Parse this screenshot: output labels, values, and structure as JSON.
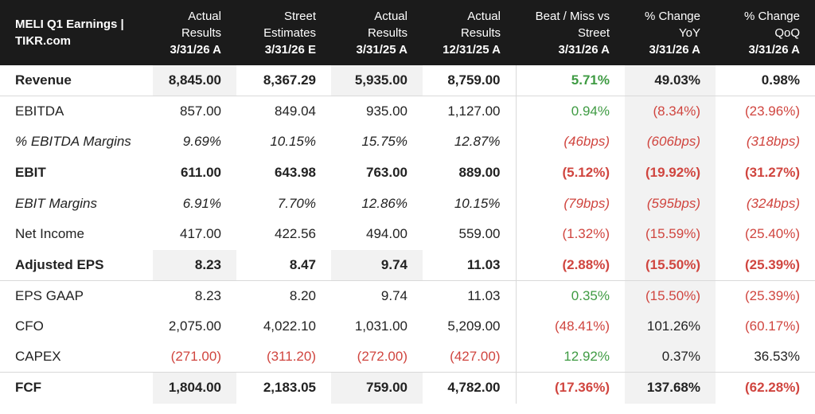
{
  "header": {
    "title_line1": "MELI Q1 Earnings |",
    "title_line2": "TIKR.com",
    "columns": [
      {
        "line1": "Actual",
        "line2": "Results",
        "date": "3/31/26 A"
      },
      {
        "line1": "Street",
        "line2": "Estimates",
        "date": "3/31/26 E"
      },
      {
        "line1": "Actual",
        "line2": "Results",
        "date": "3/31/25 A"
      },
      {
        "line1": "Actual",
        "line2": "Results",
        "date": "12/31/25 A"
      },
      {
        "line1": "Beat / Miss vs",
        "line2": "Street",
        "date": "3/31/26 A"
      },
      {
        "line1": "% Change",
        "line2": "YoY",
        "date": "3/31/26 A"
      },
      {
        "line1": "% Change",
        "line2": "QoQ",
        "date": "3/31/26 A"
      }
    ]
  },
  "rows": [
    {
      "label": "Revenue",
      "style": "bold",
      "cells": [
        {
          "v": "8,845.00",
          "c": "neu"
        },
        {
          "v": "8,367.29",
          "c": "neu"
        },
        {
          "v": "5,935.00",
          "c": "neu"
        },
        {
          "v": "8,759.00",
          "c": "neu"
        },
        {
          "v": "5.71%",
          "c": "pos"
        },
        {
          "v": "49.03%",
          "c": "neu"
        },
        {
          "v": "0.98%",
          "c": "neu"
        }
      ]
    },
    {
      "label": "EBITDA",
      "style": "normal",
      "cells": [
        {
          "v": "857.00",
          "c": "neu"
        },
        {
          "v": "849.04",
          "c": "neu"
        },
        {
          "v": "935.00",
          "c": "neu"
        },
        {
          "v": "1,127.00",
          "c": "neu"
        },
        {
          "v": "0.94%",
          "c": "pos"
        },
        {
          "v": "(8.34%)",
          "c": "neg"
        },
        {
          "v": "(23.96%)",
          "c": "neg"
        }
      ]
    },
    {
      "label": "% EBITDA Margins",
      "style": "italic",
      "cells": [
        {
          "v": "9.69%",
          "c": "neu"
        },
        {
          "v": "10.15%",
          "c": "neu"
        },
        {
          "v": "15.75%",
          "c": "neu"
        },
        {
          "v": "12.87%",
          "c": "neu"
        },
        {
          "v": "(46bps)",
          "c": "neg"
        },
        {
          "v": "(606bps)",
          "c": "neg"
        },
        {
          "v": "(318bps)",
          "c": "neg"
        }
      ]
    },
    {
      "label": "EBIT",
      "style": "bold",
      "cells": [
        {
          "v": "611.00",
          "c": "neu"
        },
        {
          "v": "643.98",
          "c": "neu"
        },
        {
          "v": "763.00",
          "c": "neu"
        },
        {
          "v": "889.00",
          "c": "neu"
        },
        {
          "v": "(5.12%)",
          "c": "neg"
        },
        {
          "v": "(19.92%)",
          "c": "neg"
        },
        {
          "v": "(31.27%)",
          "c": "neg"
        }
      ]
    },
    {
      "label": "EBIT Margins",
      "style": "italic",
      "cells": [
        {
          "v": "6.91%",
          "c": "neu"
        },
        {
          "v": "7.70%",
          "c": "neu"
        },
        {
          "v": "12.86%",
          "c": "neu"
        },
        {
          "v": "10.15%",
          "c": "neu"
        },
        {
          "v": "(79bps)",
          "c": "neg"
        },
        {
          "v": "(595bps)",
          "c": "neg"
        },
        {
          "v": "(324bps)",
          "c": "neg"
        }
      ]
    },
    {
      "label": "Net Income",
      "style": "normal",
      "cells": [
        {
          "v": "417.00",
          "c": "neu"
        },
        {
          "v": "422.56",
          "c": "neu"
        },
        {
          "v": "494.00",
          "c": "neu"
        },
        {
          "v": "559.00",
          "c": "neu"
        },
        {
          "v": "(1.32%)",
          "c": "neg"
        },
        {
          "v": "(15.59%)",
          "c": "neg"
        },
        {
          "v": "(25.40%)",
          "c": "neg"
        }
      ]
    },
    {
      "label": "Adjusted EPS",
      "style": "bold",
      "cells": [
        {
          "v": "8.23",
          "c": "neu"
        },
        {
          "v": "8.47",
          "c": "neu"
        },
        {
          "v": "9.74",
          "c": "neu"
        },
        {
          "v": "11.03",
          "c": "neu"
        },
        {
          "v": "(2.88%)",
          "c": "neg"
        },
        {
          "v": "(15.50%)",
          "c": "neg"
        },
        {
          "v": "(25.39%)",
          "c": "neg"
        }
      ]
    },
    {
      "label": "EPS GAAP",
      "style": "normal",
      "cells": [
        {
          "v": "8.23",
          "c": "neu"
        },
        {
          "v": "8.20",
          "c": "neu"
        },
        {
          "v": "9.74",
          "c": "neu"
        },
        {
          "v": "11.03",
          "c": "neu"
        },
        {
          "v": "0.35%",
          "c": "pos"
        },
        {
          "v": "(15.50%)",
          "c": "neg"
        },
        {
          "v": "(25.39%)",
          "c": "neg"
        }
      ]
    },
    {
      "label": "CFO",
      "style": "normal",
      "cells": [
        {
          "v": "2,075.00",
          "c": "neu"
        },
        {
          "v": "4,022.10",
          "c": "neu"
        },
        {
          "v": "1,031.00",
          "c": "neu"
        },
        {
          "v": "5,209.00",
          "c": "neu"
        },
        {
          "v": "(48.41%)",
          "c": "neg"
        },
        {
          "v": "101.26%",
          "c": "neu"
        },
        {
          "v": "(60.17%)",
          "c": "neg"
        }
      ]
    },
    {
      "label": "CAPEX",
      "style": "normal",
      "cells": [
        {
          "v": "(271.00)",
          "c": "neg"
        },
        {
          "v": "(311.20)",
          "c": "neg"
        },
        {
          "v": "(272.00)",
          "c": "neg"
        },
        {
          "v": "(427.00)",
          "c": "neg"
        },
        {
          "v": "12.92%",
          "c": "pos"
        },
        {
          "v": "0.37%",
          "c": "neu"
        },
        {
          "v": "36.53%",
          "c": "neu"
        }
      ]
    },
    {
      "label": "FCF",
      "style": "bold",
      "cells": [
        {
          "v": "1,804.00",
          "c": "neu"
        },
        {
          "v": "2,183.05",
          "c": "neu"
        },
        {
          "v": "759.00",
          "c": "neu"
        },
        {
          "v": "4,782.00",
          "c": "neu"
        },
        {
          "v": "(17.36%)",
          "c": "neg"
        },
        {
          "v": "137.68%",
          "c": "neu"
        },
        {
          "v": "(62.28%)",
          "c": "neg"
        }
      ]
    }
  ],
  "colors": {
    "positive": "#3f9b43",
    "negative": "#d0453f",
    "header_bg": "#1b1b1b",
    "shade": "#f2f2f2"
  }
}
